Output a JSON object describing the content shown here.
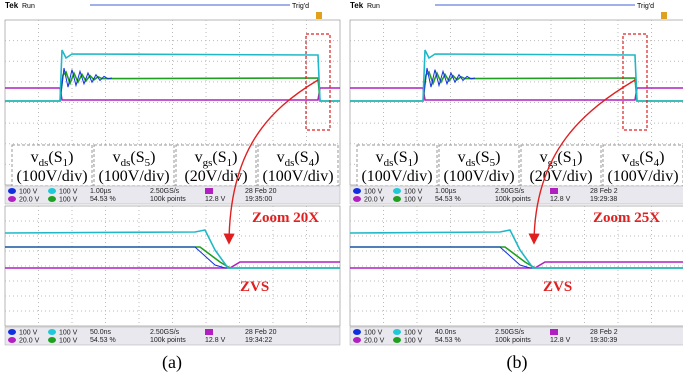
{
  "panels": [
    {
      "header": {
        "brand": "Tek",
        "status": "Run",
        "trigger": "Trig'd"
      },
      "labels": [
        {
          "v": "v",
          "sub": "ds",
          "arg": "(S",
          "arg_sub": "1",
          "close": ")",
          "scale": "(100V/div)"
        },
        {
          "v": "v",
          "sub": "ds",
          "arg": "(S",
          "arg_sub": "5",
          "close": ")",
          "scale": "(100V/div)"
        },
        {
          "v": "v",
          "sub": "gs",
          "arg": "(S",
          "arg_sub": "1",
          "close": ")",
          "scale": "(20V/div)"
        },
        {
          "v": "v",
          "sub": "ds",
          "arg": "(S",
          "arg_sub": "4",
          "close": ")",
          "scale": "(100V/div)"
        }
      ],
      "status_top": {
        "ch1": "100 V",
        "ch2": "100 V",
        "ch3": "20.0 V",
        "ch4": "100 V",
        "timebase": "1.00µs",
        "rate": "2.50GS/s",
        "percent": "54.53 %",
        "points": "100k points",
        "trig": "12.8 V",
        "date": "28 Feb 20",
        "time": "19:35:00"
      },
      "zoom": "Zoom 20X",
      "zvs": "ZVS",
      "status_bottom": {
        "ch1": "100 V",
        "ch2": "100 V",
        "ch3": "20.0 V",
        "ch4": "100 V",
        "timebase": "50.0ns",
        "rate": "2.50GS/s",
        "percent": "54.53 %",
        "points": "100k points",
        "trig": "12.8 V",
        "date": "28 Feb 20",
        "time": "19:34:22"
      },
      "caption": "(a)"
    },
    {
      "header": {
        "brand": "Tek",
        "status": "Run",
        "trigger": "Trig'd"
      },
      "labels": [
        {
          "v": "v",
          "sub": "ds",
          "arg": "(S",
          "arg_sub": "1",
          "close": ")",
          "scale": "(100V/div)"
        },
        {
          "v": "v",
          "sub": "ds",
          "arg": "(S",
          "arg_sub": "5",
          "close": ")",
          "scale": "(100V/div)"
        },
        {
          "v": "v",
          "sub": "gs",
          "arg": "(S",
          "arg_sub": "1",
          "close": ")",
          "scale": "(20V/div)"
        },
        {
          "v": "v",
          "sub": "ds",
          "arg": "(S",
          "arg_sub": "4",
          "close": ")",
          "scale": "(100V/div)"
        }
      ],
      "status_top": {
        "ch1": "100 V",
        "ch2": "100 V",
        "ch3": "20.0 V",
        "ch4": "100 V",
        "timebase": "1.00µs",
        "rate": "2.50GS/s",
        "percent": "54.53 %",
        "points": "100k points",
        "trig": "12.8 V",
        "date": "28 Feb 2",
        "time": "19:29:38"
      },
      "zoom": "Zoom 25X",
      "zvs": "ZVS",
      "status_bottom": {
        "ch1": "100 V",
        "ch2": "100 V",
        "ch3": "20.0 V",
        "ch4": "100 V",
        "timebase": "40.0ns",
        "rate": "2.50GS/s",
        "percent": "54.53 %",
        "points": "100k points",
        "trig": "12.8 V",
        "date": "28 Feb 2",
        "time": "19:30:39"
      },
      "caption": "(b)"
    }
  ]
}
